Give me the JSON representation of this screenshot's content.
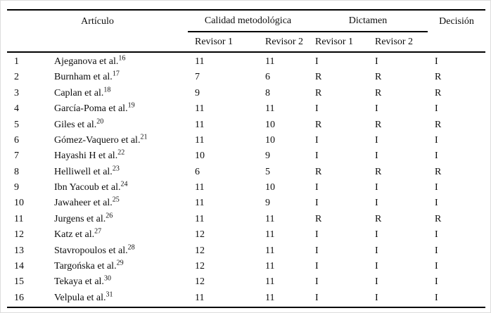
{
  "figure": {
    "kind": "paper-table",
    "language": "es",
    "colors": {
      "background": "#ffffff",
      "text": "#0d0d0d",
      "rule": "#000000",
      "frame": "#dcdcdc"
    }
  },
  "table": {
    "headers": {
      "articulo": "Artículo",
      "calidad_metodologica": "Calidad metodológica",
      "dictamen": "Dictamen",
      "decision": "Decisión",
      "revisor1": "Revisor 1",
      "revisor2": "Revisor 2"
    },
    "rows": [
      {
        "num": "1",
        "author": "Ajeganova et al.",
        "ref": "16",
        "cal1": "11",
        "cal2": "11",
        "dic1": "I",
        "dic2": "I",
        "dec": "I"
      },
      {
        "num": "2",
        "author": "Burnham et al.",
        "ref": "17",
        "cal1": "7",
        "cal2": "6",
        "dic1": "R",
        "dic2": "R",
        "dec": "R"
      },
      {
        "num": "3",
        "author": "Caplan et al.",
        "ref": "18",
        "cal1": "9",
        "cal2": "8",
        "dic1": "R",
        "dic2": "R",
        "dec": "R"
      },
      {
        "num": "4",
        "author": "García-Poma et al.",
        "ref": "19",
        "cal1": "11",
        "cal2": "11",
        "dic1": "I",
        "dic2": "I",
        "dec": "I"
      },
      {
        "num": "5",
        "author": "Giles et al.",
        "ref": "20",
        "cal1": "11",
        "cal2": "10",
        "dic1": "R",
        "dic2": "R",
        "dec": "R"
      },
      {
        "num": "6",
        "author": "Gómez-Vaquero et al.",
        "ref": "21",
        "cal1": "11",
        "cal2": "10",
        "dic1": "I",
        "dic2": "I",
        "dec": "I"
      },
      {
        "num": "7",
        "author": "Hayashi H et al.",
        "ref": "22",
        "cal1": "10",
        "cal2": "9",
        "dic1": "I",
        "dic2": "I",
        "dec": "I"
      },
      {
        "num": "8",
        "author": "Helliwell et al.",
        "ref": "23",
        "cal1": "6",
        "cal2": "5",
        "dic1": "R",
        "dic2": "R",
        "dec": "R"
      },
      {
        "num": "9",
        "author": "Ibn Yacoub et al.",
        "ref": "24",
        "cal1": "11",
        "cal2": "10",
        "dic1": "I",
        "dic2": "I",
        "dec": "I"
      },
      {
        "num": "10",
        "author": "Jawaheer et al.",
        "ref": "25",
        "cal1": "11",
        "cal2": "9",
        "dic1": "I",
        "dic2": "I",
        "dec": "I"
      },
      {
        "num": "11",
        "author": "Jurgens et al.",
        "ref": "26",
        "cal1": "11",
        "cal2": "11",
        "dic1": "R",
        "dic2": "R",
        "dec": "R"
      },
      {
        "num": "12",
        "author": "Katz et al.",
        "ref": "27",
        "cal1": "12",
        "cal2": "11",
        "dic1": "I",
        "dic2": "I",
        "dec": "I"
      },
      {
        "num": "13",
        "author": "Stavropoulos et al.",
        "ref": "28",
        "cal1": "12",
        "cal2": "11",
        "dic1": "I",
        "dic2": "I",
        "dec": "I"
      },
      {
        "num": "14",
        "author": "Targońska et al.",
        "ref": "29",
        "cal1": "12",
        "cal2": "11",
        "dic1": "I",
        "dic2": "I",
        "dec": "I"
      },
      {
        "num": "15",
        "author": "Tekaya et al.",
        "ref": "30",
        "cal1": "12",
        "cal2": "11",
        "dic1": "I",
        "dic2": "I",
        "dec": "I"
      },
      {
        "num": "16",
        "author": "Velpula et al.",
        "ref": "31",
        "cal1": "11",
        "cal2": "11",
        "dic1": "I",
        "dic2": "I",
        "dec": "I"
      }
    ]
  }
}
